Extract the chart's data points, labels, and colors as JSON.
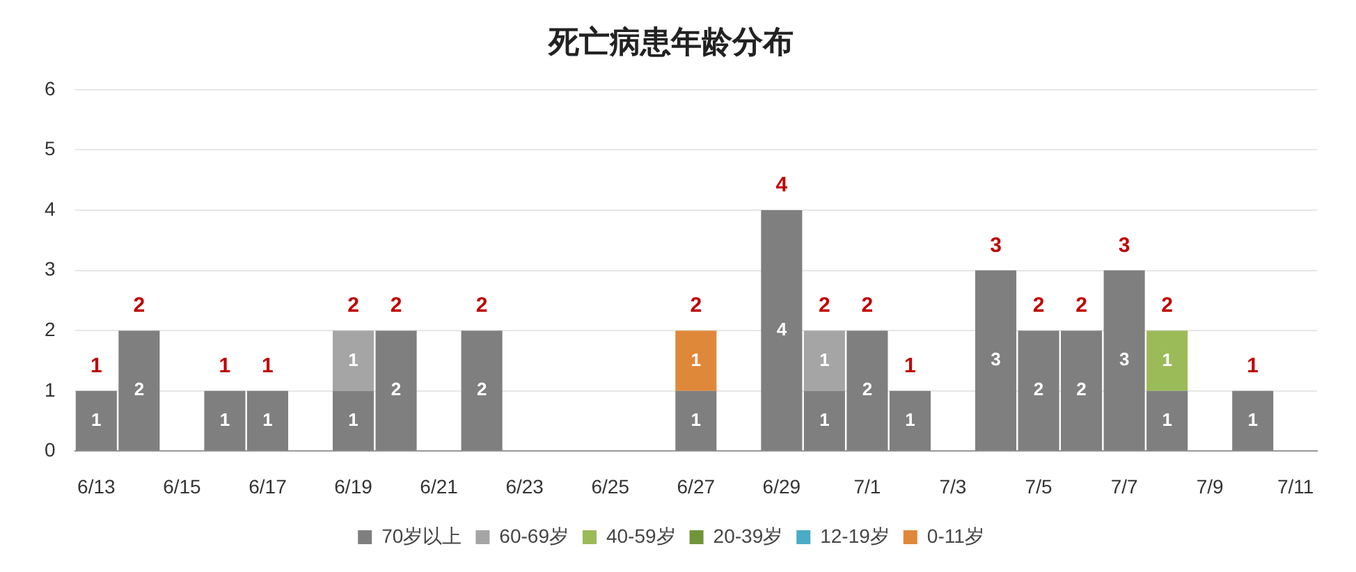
{
  "chart_data": {
    "type": "bar",
    "title": "死亡病患年龄分布",
    "stacked": true,
    "grid": "y",
    "legend": "bottom",
    "data_labels": true,
    "categories": [
      "6/13",
      null,
      "6/15",
      null,
      "6/17",
      null,
      "6/19",
      null,
      "6/21",
      null,
      "6/23",
      null,
      "6/25",
      null,
      "6/27",
      null,
      "6/29",
      null,
      "7/1",
      null,
      "7/3",
      null,
      "7/5",
      null,
      "7/7",
      null,
      "7/9",
      null,
      "7/11"
    ],
    "series": [
      {
        "name": "70岁以上",
        "color": "#7f7f7f",
        "values": [
          1,
          2,
          null,
          1,
          1,
          null,
          1,
          2,
          null,
          2,
          null,
          null,
          null,
          null,
          1,
          null,
          4,
          1,
          2,
          1,
          null,
          3,
          2,
          2,
          3,
          1,
          null,
          1,
          null
        ]
      },
      {
        "name": "60-69岁",
        "color": "#a5a5a5",
        "values": [
          null,
          null,
          null,
          null,
          null,
          null,
          1,
          null,
          null,
          null,
          null,
          null,
          null,
          null,
          null,
          null,
          null,
          1,
          null,
          null,
          null,
          null,
          null,
          null,
          null,
          null,
          null,
          null,
          null
        ]
      },
      {
        "name": "40-59岁",
        "color": "#9bbb59",
        "values": [
          null,
          null,
          null,
          null,
          null,
          null,
          null,
          null,
          null,
          null,
          null,
          null,
          null,
          null,
          null,
          null,
          null,
          null,
          null,
          null,
          null,
          null,
          null,
          null,
          null,
          1,
          null,
          null,
          null
        ]
      },
      {
        "name": "20-39岁",
        "color": "#70953a",
        "values": [
          null,
          null,
          null,
          null,
          null,
          null,
          null,
          null,
          null,
          null,
          null,
          null,
          null,
          null,
          null,
          null,
          null,
          null,
          null,
          null,
          null,
          null,
          null,
          null,
          null,
          null,
          null,
          null,
          null
        ]
      },
      {
        "name": "12-19岁",
        "color": "#4bacc6",
        "values": [
          null,
          null,
          null,
          null,
          null,
          null,
          null,
          null,
          null,
          null,
          null,
          null,
          null,
          null,
          null,
          null,
          null,
          null,
          null,
          null,
          null,
          null,
          null,
          null,
          null,
          null,
          null,
          null,
          null
        ]
      },
      {
        "name": "0-11岁",
        "color": "#e0883a",
        "values": [
          null,
          null,
          null,
          null,
          null,
          null,
          null,
          null,
          null,
          null,
          null,
          null,
          null,
          null,
          1,
          null,
          null,
          null,
          null,
          null,
          null,
          null,
          null,
          null,
          null,
          null,
          null,
          null,
          null
        ]
      }
    ],
    "totals": [
      "1",
      "2",
      null,
      "1",
      "1",
      null,
      "2",
      "2",
      null,
      "2",
      null,
      null,
      null,
      null,
      "2",
      null,
      "4",
      "2",
      "2",
      "1",
      null,
      "3",
      "2",
      "2",
      "3",
      "2",
      null,
      "1",
      null
    ],
    "ylim": [
      0,
      6
    ],
    "yticks": [
      0,
      1,
      2,
      3,
      4,
      5,
      6
    ]
  }
}
